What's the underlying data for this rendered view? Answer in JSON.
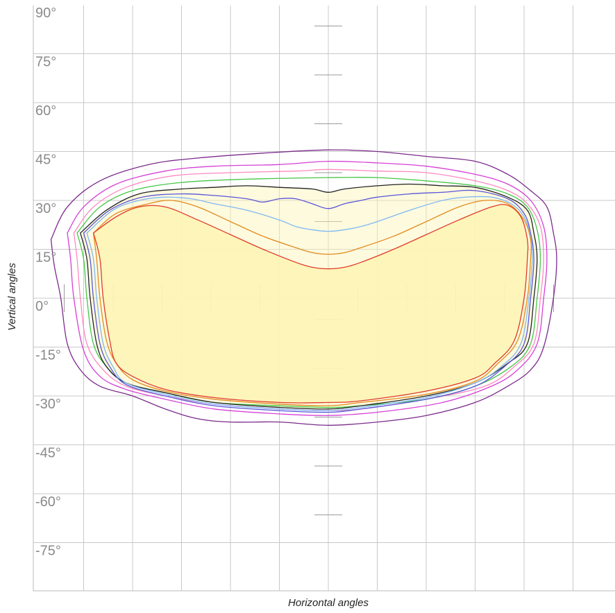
{
  "chart_data": {
    "type": "polar-isocandela-contour",
    "xlabel": "Horizontal angles",
    "ylabel": "Vertical angles",
    "ylim": [
      -90,
      90
    ],
    "xlim": [
      -90,
      90
    ],
    "y_ticks": [
      "90°",
      "75°",
      "60°",
      "45°",
      "30°",
      "15°",
      "0°",
      "-15°",
      "-30°",
      "-45°",
      "-60°",
      "-75°"
    ],
    "grid": true,
    "fill_color": "#fdf4b5",
    "series": [
      {
        "color": "#7b2a8b",
        "points": [
          [
            -85,
            18
          ],
          [
            -80,
            28
          ],
          [
            -70,
            36
          ],
          [
            -55,
            41
          ],
          [
            -40,
            43
          ],
          [
            -20,
            44.5
          ],
          [
            0,
            45.5
          ],
          [
            15,
            45
          ],
          [
            30,
            43.5
          ],
          [
            45,
            42
          ],
          [
            55,
            38
          ],
          [
            62,
            33
          ],
          [
            67,
            28
          ],
          [
            69,
            20
          ],
          [
            70,
            12
          ],
          [
            69,
            0
          ],
          [
            66,
            -15
          ],
          [
            62,
            -22
          ],
          [
            55,
            -27
          ],
          [
            45,
            -32
          ],
          [
            30,
            -36
          ],
          [
            15,
            -38
          ],
          [
            0,
            -39
          ],
          [
            -15,
            -38
          ],
          [
            -30,
            -38
          ],
          [
            -40,
            -37
          ],
          [
            -50,
            -34
          ],
          [
            -60,
            -30
          ],
          [
            -70,
            -27
          ],
          [
            -76,
            -22
          ],
          [
            -80,
            -14
          ],
          [
            -82,
            0
          ],
          [
            -84,
            10
          ],
          [
            -85,
            18
          ]
        ]
      },
      {
        "color": "#d63fd6",
        "points": [
          [
            -80,
            20
          ],
          [
            -75,
            28
          ],
          [
            -65,
            35
          ],
          [
            -50,
            39
          ],
          [
            -35,
            40.5
          ],
          [
            -15,
            41
          ],
          [
            0,
            42
          ],
          [
            15,
            41.5
          ],
          [
            30,
            40.5
          ],
          [
            45,
            38
          ],
          [
            55,
            35
          ],
          [
            62,
            30
          ],
          [
            66,
            22
          ],
          [
            67,
            12
          ],
          [
            66,
            0
          ],
          [
            64,
            -14
          ],
          [
            58,
            -22
          ],
          [
            50,
            -27
          ],
          [
            35,
            -32
          ],
          [
            15,
            -35
          ],
          [
            0,
            -36
          ],
          [
            -15,
            -35.5
          ],
          [
            -35,
            -34
          ],
          [
            -50,
            -31
          ],
          [
            -62,
            -28
          ],
          [
            -70,
            -24
          ],
          [
            -75,
            -16
          ],
          [
            -78,
            0
          ],
          [
            -79,
            12
          ],
          [
            -80,
            20
          ]
        ]
      },
      {
        "color": "#ff88bf",
        "points": [
          [
            -78,
            20
          ],
          [
            -72,
            28
          ],
          [
            -62,
            34
          ],
          [
            -48,
            37.5
          ],
          [
            -30,
            38.5
          ],
          [
            -10,
            39
          ],
          [
            0,
            39.5
          ],
          [
            15,
            39
          ],
          [
            30,
            38.5
          ],
          [
            45,
            36
          ],
          [
            55,
            33
          ],
          [
            61,
            29
          ],
          [
            65,
            22
          ],
          [
            66,
            12
          ],
          [
            65,
            0
          ],
          [
            63,
            -14
          ],
          [
            57,
            -21
          ],
          [
            48,
            -27
          ],
          [
            30,
            -31
          ],
          [
            10,
            -34
          ],
          [
            0,
            -34.5
          ],
          [
            -15,
            -34
          ],
          [
            -35,
            -32.5
          ],
          [
            -50,
            -30
          ],
          [
            -62,
            -27
          ],
          [
            -69,
            -22
          ],
          [
            -74,
            -14
          ],
          [
            -76,
            0
          ],
          [
            -77,
            12
          ],
          [
            -78,
            20
          ]
        ]
      },
      {
        "color": "#45c645",
        "points": [
          [
            -77,
            20
          ],
          [
            -70,
            28
          ],
          [
            -60,
            33
          ],
          [
            -45,
            35.5
          ],
          [
            -25,
            36.5
          ],
          [
            0,
            37
          ],
          [
            15,
            37
          ],
          [
            30,
            36
          ],
          [
            45,
            34.5
          ],
          [
            55,
            32
          ],
          [
            61,
            28
          ],
          [
            64,
            21
          ],
          [
            65,
            12
          ],
          [
            64,
            0
          ],
          [
            62,
            -14
          ],
          [
            56,
            -21
          ],
          [
            45,
            -27
          ],
          [
            30,
            -31
          ],
          [
            10,
            -33
          ],
          [
            0,
            -33.5
          ],
          [
            -15,
            -33
          ],
          [
            -35,
            -32
          ],
          [
            -50,
            -29
          ],
          [
            -62,
            -26
          ],
          [
            -68,
            -21
          ],
          [
            -72,
            -14
          ],
          [
            -74,
            0
          ],
          [
            -75,
            12
          ],
          [
            -77,
            20
          ]
        ]
      },
      {
        "color": "#222222",
        "points": [
          [
            -76,
            20
          ],
          [
            -68,
            27
          ],
          [
            -58,
            32
          ],
          [
            -45,
            33.5
          ],
          [
            -35,
            34
          ],
          [
            -25,
            34.5
          ],
          [
            -15,
            34
          ],
          [
            -5,
            33.5
          ],
          [
            0,
            32.5
          ],
          [
            5,
            33.5
          ],
          [
            15,
            34.5
          ],
          [
            25,
            35
          ],
          [
            35,
            34.5
          ],
          [
            45,
            34
          ],
          [
            55,
            31
          ],
          [
            61,
            27
          ],
          [
            63,
            20
          ],
          [
            64,
            12
          ],
          [
            63,
            0
          ],
          [
            61,
            -14
          ],
          [
            55,
            -20
          ],
          [
            45,
            -26
          ],
          [
            30,
            -30
          ],
          [
            10,
            -33
          ],
          [
            0,
            -34
          ],
          [
            -15,
            -33.5
          ],
          [
            -35,
            -32
          ],
          [
            -50,
            -29
          ],
          [
            -62,
            -26
          ],
          [
            -68,
            -21
          ],
          [
            -71,
            -14
          ],
          [
            -73,
            0
          ],
          [
            -74,
            12
          ],
          [
            -76,
            20
          ]
        ]
      },
      {
        "color": "#5a55d9",
        "points": [
          [
            -75,
            20
          ],
          [
            -67,
            27
          ],
          [
            -57,
            31
          ],
          [
            -45,
            32
          ],
          [
            -35,
            31.5
          ],
          [
            -25,
            30.5
          ],
          [
            -20,
            29.5
          ],
          [
            -15,
            30.5
          ],
          [
            -10,
            30.5
          ],
          [
            -5,
            29
          ],
          [
            0,
            27.5
          ],
          [
            5,
            29
          ],
          [
            10,
            30
          ],
          [
            15,
            31
          ],
          [
            25,
            32
          ],
          [
            35,
            32.5
          ],
          [
            45,
            33
          ],
          [
            55,
            30.5
          ],
          [
            60,
            26
          ],
          [
            62,
            20
          ],
          [
            63,
            12
          ],
          [
            62,
            0
          ],
          [
            60,
            -14
          ],
          [
            54,
            -21
          ],
          [
            45,
            -27
          ],
          [
            30,
            -31
          ],
          [
            10,
            -34
          ],
          [
            0,
            -35
          ],
          [
            -15,
            -34.5
          ],
          [
            -35,
            -33
          ],
          [
            -50,
            -30
          ],
          [
            -62,
            -26.5
          ],
          [
            -67,
            -21
          ],
          [
            -70,
            -14
          ],
          [
            -72,
            0
          ],
          [
            -73,
            12
          ],
          [
            -75,
            20
          ]
        ]
      },
      {
        "color": "#7fb8f3",
        "points": [
          [
            -74,
            20
          ],
          [
            -66,
            27
          ],
          [
            -58,
            30
          ],
          [
            -50,
            31
          ],
          [
            -42,
            30.5
          ],
          [
            -35,
            29
          ],
          [
            -25,
            27
          ],
          [
            -15,
            24
          ],
          [
            -10,
            22
          ],
          [
            -5,
            21
          ],
          [
            0,
            20.5
          ],
          [
            5,
            21
          ],
          [
            10,
            22
          ],
          [
            15,
            23.5
          ],
          [
            25,
            27
          ],
          [
            35,
            30
          ],
          [
            42,
            31
          ],
          [
            50,
            31
          ],
          [
            56,
            29
          ],
          [
            60,
            25
          ],
          [
            62,
            19
          ],
          [
            62.5,
            12
          ],
          [
            61.5,
            0
          ],
          [
            59,
            -14
          ],
          [
            53,
            -21
          ],
          [
            45,
            -26
          ],
          [
            30,
            -30.5
          ],
          [
            10,
            -33.5
          ],
          [
            0,
            -34.5
          ],
          [
            -15,
            -34
          ],
          [
            -35,
            -32.5
          ],
          [
            -50,
            -29.5
          ],
          [
            -62,
            -26
          ],
          [
            -66,
            -21
          ],
          [
            -69,
            -14
          ],
          [
            -71,
            0
          ],
          [
            -72,
            12
          ],
          [
            -74,
            20
          ]
        ]
      },
      {
        "color": "#e38a1c",
        "points": [
          [
            -72,
            20
          ],
          [
            -65,
            26
          ],
          [
            -55,
            29
          ],
          [
            -48,
            30
          ],
          [
            -40,
            28
          ],
          [
            -30,
            23.5
          ],
          [
            -20,
            19
          ],
          [
            -10,
            15.5
          ],
          [
            -5,
            14
          ],
          [
            0,
            13.5
          ],
          [
            5,
            14
          ],
          [
            10,
            15.5
          ],
          [
            20,
            19
          ],
          [
            30,
            23.5
          ],
          [
            40,
            28
          ],
          [
            48,
            30
          ],
          [
            55,
            29
          ],
          [
            60,
            24
          ],
          [
            62,
            18
          ],
          [
            62,
            12
          ],
          [
            61,
            0
          ],
          [
            58,
            -13
          ],
          [
            52,
            -20
          ],
          [
            45,
            -25.5
          ],
          [
            30,
            -29.5
          ],
          [
            10,
            -32
          ],
          [
            0,
            -33
          ],
          [
            -15,
            -32.5
          ],
          [
            -35,
            -31
          ],
          [
            -50,
            -28.5
          ],
          [
            -60,
            -25
          ],
          [
            -65,
            -20
          ],
          [
            -68,
            -13
          ],
          [
            -70,
            0
          ],
          [
            -71,
            12
          ],
          [
            -72,
            20
          ]
        ]
      },
      {
        "color": "#e03a2a",
        "points": [
          [
            -72,
            20
          ],
          [
            -65,
            25
          ],
          [
            -58,
            28
          ],
          [
            -50,
            28
          ],
          [
            -40,
            24
          ],
          [
            -30,
            19.5
          ],
          [
            -20,
            15
          ],
          [
            -10,
            11
          ],
          [
            -5,
            9.5
          ],
          [
            0,
            9
          ],
          [
            5,
            9.5
          ],
          [
            10,
            11
          ],
          [
            20,
            15
          ],
          [
            30,
            19.5
          ],
          [
            40,
            24
          ],
          [
            50,
            28
          ],
          [
            55,
            28.5
          ],
          [
            59,
            25
          ],
          [
            61,
            18
          ],
          [
            61,
            12
          ],
          [
            60,
            0
          ],
          [
            57,
            -13
          ],
          [
            51,
            -20
          ],
          [
            45,
            -24.5
          ],
          [
            30,
            -28.5
          ],
          [
            10,
            -31.5
          ],
          [
            0,
            -32
          ],
          [
            -15,
            -32
          ],
          [
            -35,
            -30.5
          ],
          [
            -50,
            -28
          ],
          [
            -60,
            -24
          ],
          [
            -65,
            -20
          ],
          [
            -67,
            -13
          ],
          [
            -69,
            0
          ],
          [
            -70,
            12
          ],
          [
            -72,
            20
          ]
        ]
      }
    ]
  }
}
